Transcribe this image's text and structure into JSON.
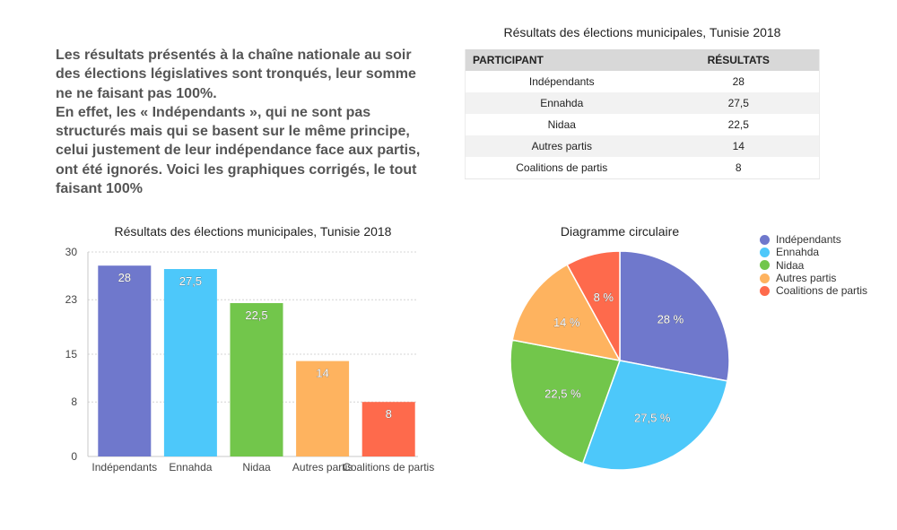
{
  "intro": {
    "paragraph1": "Les résultats présentés à la chaîne nationale au soir des élections législatives sont tronqués, leur somme ne ne faisant pas 100%.",
    "paragraph2": "En effet, les « Indépendants », qui ne sont pas structurés mais qui se basent sur le même principe, celui justement de leur indépendance face aux partis, ont été ignorés. Voici les graphiques corrigés, le tout faisant 100%"
  },
  "table": {
    "title": "Résultats des élections municipales, Tunisie 2018",
    "headers": [
      "PARTICIPANT",
      "RÉSULTATS"
    ],
    "rows": [
      [
        "Indépendants",
        "28"
      ],
      [
        "Ennahda",
        "27,5"
      ],
      [
        "Nidaa",
        "22,5"
      ],
      [
        "Autres partis",
        "14"
      ],
      [
        "Coalitions de partis",
        "8"
      ]
    ]
  },
  "colors": {
    "independants": "#6f78cc",
    "ennahda": "#4dc8fa",
    "nidaa": "#72c64b",
    "autres": "#feb35f",
    "coalitions": "#fe6a4c"
  },
  "chart_data": [
    {
      "type": "bar",
      "title": "Résultats des élections municipales, Tunisie 2018",
      "categories": [
        "Indépendants",
        "Ennahda",
        "Nidaa",
        "Autres partis",
        "Coalitions de partis"
      ],
      "values": [
        28,
        27.5,
        22.5,
        14,
        8
      ],
      "data_labels": [
        "28",
        "27,5",
        "22,5",
        "14",
        "8"
      ],
      "yticks": [
        0,
        8,
        15,
        23,
        30
      ],
      "ylim": [
        0,
        30
      ],
      "grid": true,
      "xlabel": "",
      "ylabel": ""
    },
    {
      "type": "pie",
      "title": "Diagramme circulaire",
      "labels": [
        "Indépendants",
        "Ennahda",
        "Nidaa",
        "Autres partis",
        "Coalitions de partis"
      ],
      "values": [
        28,
        27.5,
        22.5,
        14,
        8
      ],
      "data_labels": [
        "28 %",
        "27,5 %",
        "22,5 %",
        "14 %",
        "8 %"
      ],
      "legend": "right"
    }
  ]
}
